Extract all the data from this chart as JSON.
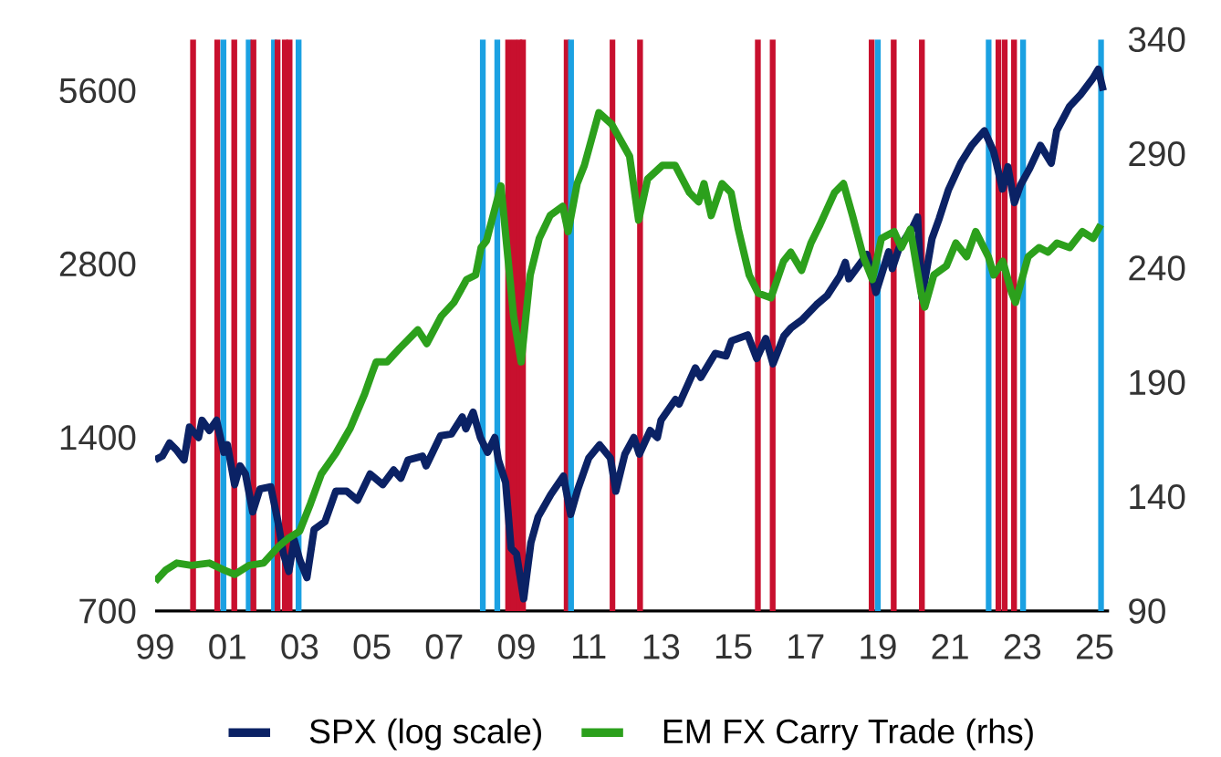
{
  "chart_data": {
    "type": "line",
    "log": "y",
    "legend": "bottom",
    "xlim": [
      1999,
      2025.4
    ],
    "ylim": [
      700,
      6870
    ],
    "y2lim": [
      90,
      340
    ],
    "xticks": [
      {
        "value": 1999,
        "label": "99"
      },
      {
        "value": 2001,
        "label": "01"
      },
      {
        "value": 2003,
        "label": "03"
      },
      {
        "value": 2005,
        "label": "05"
      },
      {
        "value": 2007,
        "label": "07"
      },
      {
        "value": 2009,
        "label": "09"
      },
      {
        "value": 2011,
        "label": "11"
      },
      {
        "value": 2013,
        "label": "13"
      },
      {
        "value": 2015,
        "label": "15"
      },
      {
        "value": 2017,
        "label": "17"
      },
      {
        "value": 2019,
        "label": "19"
      },
      {
        "value": 2021,
        "label": "21"
      },
      {
        "value": 2023,
        "label": "23"
      },
      {
        "value": 2025,
        "label": "25"
      }
    ],
    "yticks": [
      700,
      1400,
      2800,
      5600
    ],
    "y2ticks": [
      90,
      140,
      190,
      240,
      290,
      340
    ],
    "ref_lines": [
      {
        "axis": "x",
        "value": 2000.05,
        "color": "#c8102e"
      },
      {
        "axis": "x",
        "value": 2000.72,
        "color": "#c8102e"
      },
      {
        "axis": "x",
        "value": 2000.89,
        "color": "#1ba1e2"
      },
      {
        "axis": "x",
        "value": 2001.19,
        "color": "#c8102e"
      },
      {
        "axis": "x",
        "value": 2001.59,
        "color": "#1ba1e2"
      },
      {
        "axis": "x",
        "value": 2001.72,
        "color": "#c8102e"
      },
      {
        "axis": "x",
        "value": 2002.29,
        "color": "#1ba1e2"
      },
      {
        "axis": "x",
        "value": 2002.39,
        "color": "#c8102e"
      },
      {
        "axis": "x",
        "value": 2002.59,
        "color": "#c8102e"
      },
      {
        "axis": "x",
        "value": 2002.72,
        "color": "#c8102e"
      },
      {
        "axis": "x",
        "value": 2002.97,
        "color": "#1ba1e2"
      },
      {
        "axis": "x",
        "value": 2008.07,
        "color": "#1ba1e2"
      },
      {
        "axis": "x",
        "value": 2008.47,
        "color": "#1ba1e2"
      },
      {
        "axis": "x",
        "value": 2008.77,
        "color": "#c8102e"
      },
      {
        "axis": "x",
        "value": 2008.93,
        "color": "#c8102e"
      },
      {
        "axis": "x",
        "value": 2009.08,
        "color": "#c8102e"
      },
      {
        "axis": "x",
        "value": 2009.18,
        "color": "#c8102e"
      },
      {
        "axis": "x",
        "value": 2010.39,
        "color": "#c8102e"
      },
      {
        "axis": "x",
        "value": 2010.51,
        "color": "#1ba1e2"
      },
      {
        "axis": "x",
        "value": 2011.66,
        "color": "#c8102e"
      },
      {
        "axis": "x",
        "value": 2012.42,
        "color": "#c8102e"
      },
      {
        "axis": "x",
        "value": 2015.68,
        "color": "#c8102e"
      },
      {
        "axis": "x",
        "value": 2016.09,
        "color": "#c8102e"
      },
      {
        "axis": "x",
        "value": 2018.83,
        "color": "#c8102e"
      },
      {
        "axis": "x",
        "value": 2019.0,
        "color": "#1ba1e2"
      },
      {
        "axis": "x",
        "value": 2019.44,
        "color": "#c8102e"
      },
      {
        "axis": "x",
        "value": 2020.22,
        "color": "#c8102e"
      },
      {
        "axis": "x",
        "value": 2022.07,
        "color": "#1ba1e2"
      },
      {
        "axis": "x",
        "value": 2022.34,
        "color": "#c8102e"
      },
      {
        "axis": "x",
        "value": 2022.51,
        "color": "#c8102e"
      },
      {
        "axis": "x",
        "value": 2022.77,
        "color": "#c8102e"
      },
      {
        "axis": "x",
        "value": 2023.02,
        "color": "#1ba1e2"
      },
      {
        "axis": "x",
        "value": 2025.18,
        "color": "#1ba1e2"
      }
    ],
    "series": [
      {
        "name": "SPX (log scale)",
        "color": "#0b2265",
        "x": [
          1999.0,
          1999.2,
          1999.4,
          1999.6,
          1999.8,
          1999.95,
          2000.2,
          2000.3,
          2000.5,
          2000.7,
          2000.9,
          2001.0,
          2001.2,
          2001.35,
          2001.5,
          2001.7,
          2001.9,
          2002.2,
          2002.4,
          2002.55,
          2002.7,
          2002.85,
          2003.0,
          2003.2,
          2003.4,
          2003.7,
          2004.0,
          2004.3,
          2004.6,
          2004.95,
          2005.3,
          2005.6,
          2005.8,
          2006.0,
          2006.4,
          2006.5,
          2006.9,
          2007.2,
          2007.5,
          2007.6,
          2007.8,
          2008.0,
          2008.2,
          2008.4,
          2008.5,
          2008.7,
          2008.85,
          2009.0,
          2009.2,
          2009.4,
          2009.6,
          2009.95,
          2010.3,
          2010.5,
          2010.7,
          2011.0,
          2011.3,
          2011.6,
          2011.75,
          2012.0,
          2012.25,
          2012.4,
          2012.7,
          2012.9,
          2013.0,
          2013.4,
          2013.5,
          2013.95,
          2014.1,
          2014.5,
          2014.8,
          2014.95,
          2015.4,
          2015.65,
          2015.9,
          2016.1,
          2016.4,
          2016.6,
          2016.9,
          2017.3,
          2017.6,
          2017.95,
          2018.1,
          2018.2,
          2018.7,
          2018.95,
          2019.3,
          2019.4,
          2019.6,
          2019.95,
          2020.1,
          2020.22,
          2020.5,
          2020.7,
          2020.95,
          2021.3,
          2021.6,
          2021.95,
          2022.2,
          2022.45,
          2022.6,
          2022.78,
          2022.95,
          2023.2,
          2023.5,
          2023.8,
          2023.95,
          2024.3,
          2024.6,
          2024.95,
          2025.1,
          2025.24
        ],
        "values": [
          1280,
          1300,
          1370,
          1330,
          1280,
          1460,
          1400,
          1500,
          1440,
          1500,
          1320,
          1360,
          1160,
          1250,
          1210,
          1040,
          1140,
          1150,
          1000,
          880,
          820,
          930,
          860,
          800,
          970,
          1000,
          1130,
          1130,
          1090,
          1210,
          1160,
          1230,
          1190,
          1280,
          1300,
          1250,
          1410,
          1420,
          1520,
          1450,
          1550,
          1400,
          1320,
          1400,
          1280,
          1170,
          900,
          880,
          735,
          920,
          1020,
          1115,
          1200,
          1030,
          1140,
          1290,
          1360,
          1290,
          1130,
          1310,
          1400,
          1310,
          1440,
          1400,
          1500,
          1630,
          1600,
          1850,
          1780,
          1960,
          1940,
          2060,
          2110,
          1920,
          2080,
          1880,
          2100,
          2170,
          2240,
          2380,
          2470,
          2670,
          2820,
          2640,
          2910,
          2500,
          2940,
          2750,
          3000,
          3230,
          3380,
          2450,
          3100,
          3360,
          3760,
          4200,
          4500,
          4770,
          4400,
          3780,
          4130,
          3580,
          3840,
          4100,
          4500,
          4190,
          4770,
          5250,
          5500,
          5880,
          6100,
          5600
        ]
      },
      {
        "name": "EM FX Carry Trade (rhs)",
        "color": "#2ca01c",
        "axis": "y2",
        "x": [
          1999.0,
          1999.3,
          1999.6,
          2000.0,
          2000.5,
          2000.9,
          2001.2,
          2001.6,
          2002.0,
          2002.4,
          2002.7,
          2003.0,
          2003.3,
          2003.6,
          2004.0,
          2004.4,
          2004.8,
          2005.0,
          2005.12,
          2005.42,
          2005.77,
          2006.27,
          2006.52,
          2006.92,
          2007.27,
          2007.62,
          2007.87,
          2008.02,
          2008.17,
          2008.57,
          2008.92,
          2009.13,
          2009.38,
          2009.63,
          2009.93,
          2010.28,
          2010.43,
          2010.68,
          2010.88,
          2011.28,
          2011.63,
          2012.13,
          2012.38,
          2012.63,
          2013.04,
          2013.39,
          2013.79,
          2014.04,
          2014.19,
          2014.39,
          2014.69,
          2014.94,
          2015.14,
          2015.44,
          2015.69,
          2016.04,
          2016.39,
          2016.59,
          2016.89,
          2017.15,
          2017.4,
          2017.8,
          2018.05,
          2018.3,
          2018.6,
          2018.85,
          2019.1,
          2019.45,
          2019.65,
          2019.9,
          2020.2,
          2020.3,
          2020.55,
          2020.9,
          2021.16,
          2021.46,
          2021.71,
          2022.06,
          2022.21,
          2022.46,
          2022.71,
          2022.81,
          2023.16,
          2023.46,
          2023.71,
          2023.96,
          2024.31,
          2024.66,
          2024.96,
          2025.17
        ],
        "values": [
          103,
          108,
          111,
          110,
          111,
          108,
          106,
          110,
          111,
          118,
          122,
          125,
          137,
          150,
          159,
          170,
          185,
          194,
          199,
          199,
          205,
          213,
          207,
          219,
          225,
          235,
          237,
          249,
          252,
          276,
          219,
          199,
          237,
          253,
          263,
          267,
          256,
          277,
          285,
          308,
          303,
          289,
          261,
          279,
          285,
          285,
          273,
          269,
          277,
          263,
          277,
          273,
          257,
          237,
          229,
          227,
          243,
          247,
          239,
          251,
          259,
          273,
          277,
          263,
          245,
          235,
          253,
          256,
          249,
          257,
          229,
          223,
          237,
          241,
          251,
          245,
          256,
          245,
          237,
          243,
          229,
          225,
          245,
          249,
          247,
          251,
          249,
          256,
          253,
          259
        ]
      }
    ]
  }
}
